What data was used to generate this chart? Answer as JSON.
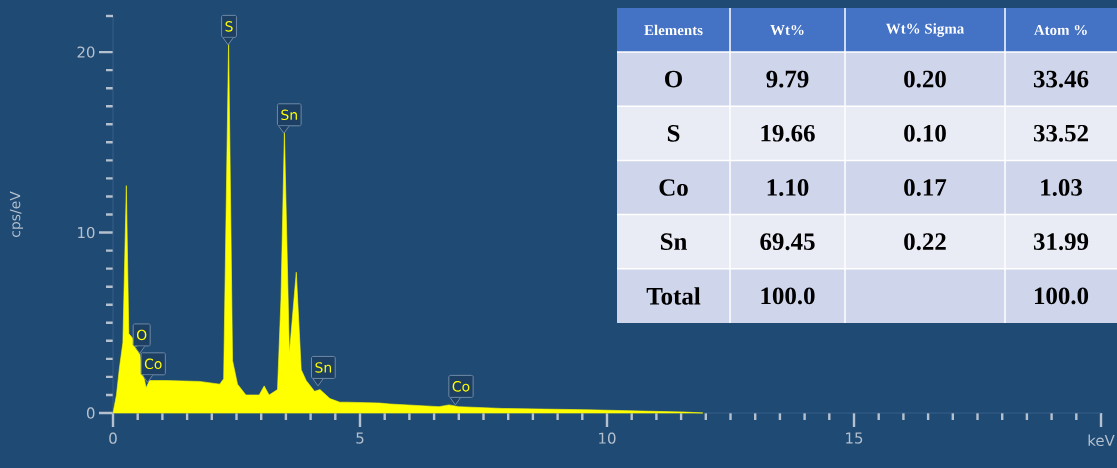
{
  "chart_data": [
    {
      "type": "area",
      "xlabel": "keV",
      "ylabel": "cps/eV",
      "color": "#ffff00",
      "x": [
        0.0,
        0.07,
        0.13,
        0.2,
        0.27,
        0.32,
        0.44,
        0.54,
        0.61,
        0.67,
        0.74,
        1.08,
        1.75,
        2.16,
        2.24,
        2.34,
        2.42,
        2.52,
        2.69,
        2.96,
        3.06,
        3.16,
        3.33,
        3.4,
        3.47,
        3.57,
        3.71,
        3.81,
        3.91,
        4.08,
        4.19,
        4.39,
        4.59,
        4.73,
        5.4,
        5.6,
        6.6,
        6.8,
        7.0,
        7.9,
        9.6,
        11.6,
        11.94
      ],
      "values": [
        0,
        1.0,
        2.5,
        3.9,
        12.6,
        4.4,
        4.0,
        3.3,
        2.2,
        1.4,
        1.8,
        1.8,
        1.75,
        1.6,
        1.9,
        20.6,
        2.9,
        1.6,
        1.0,
        1.0,
        1.5,
        1.0,
        1.3,
        6.3,
        15.6,
        3.3,
        7.8,
        2.4,
        1.8,
        1.2,
        1.3,
        0.8,
        0.6,
        0.6,
        0.55,
        0.5,
        0.35,
        0.45,
        0.35,
        0.25,
        0.18,
        0.05,
        0
      ],
      "xlim": [
        0,
        20
      ],
      "ylim": [
        0,
        22
      ],
      "xticks": [
        0,
        5,
        10,
        15,
        {
          "value": 20,
          "label": null
        }
      ],
      "yticks": [
        0,
        10,
        20,
        {
          "value": 22,
          "label": null
        }
      ],
      "annotations": [
        {
          "text": "O",
          "x": 0.54,
          "y": 3.3
        },
        {
          "text": "Co",
          "x": 0.7,
          "y": 1.7
        },
        {
          "text": "S",
          "x": 2.33,
          "y": 20.4
        },
        {
          "text": "Sn",
          "x": 3.46,
          "y": 15.5
        },
        {
          "text": "Sn",
          "x": 4.15,
          "y": 1.5
        },
        {
          "text": "Co",
          "x": 6.93,
          "y": 0.45
        }
      ]
    },
    {
      "type": "other",
      "categories": [
        "Elements",
        "Wt%",
        "Wt% Sigma",
        "Atom %"
      ],
      "y_categories": [
        "O",
        "S",
        "Co",
        "Sn",
        "Total"
      ],
      "cell_labels": [
        [
          "9.79",
          "0.20",
          "33.46"
        ],
        [
          "19.66",
          "0.10",
          "33.52"
        ],
        [
          "1.10",
          "0.17",
          "1.03"
        ],
        [
          "69.45",
          "0.22",
          "31.99"
        ],
        [
          "100.0",
          null,
          "100.0"
        ]
      ]
    }
  ]
}
